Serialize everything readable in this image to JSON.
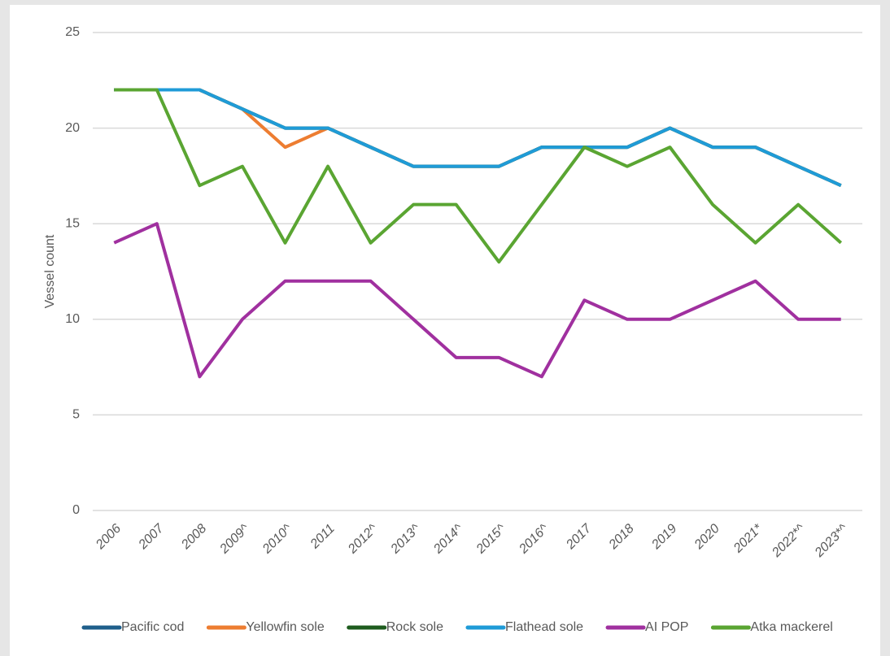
{
  "chart_data": {
    "type": "line",
    "y_label": "Vessel count",
    "categories": [
      "2006",
      "2007",
      "2008",
      "2009^",
      "2010^",
      "2011",
      "2012^",
      "2013^",
      "2014^",
      "2015^",
      "2016^",
      "2017",
      "2018",
      "2019",
      "2020",
      "2021*",
      "2022*^",
      "2023*^"
    ],
    "series": [
      {
        "name": "Pacific cod",
        "color": "#1f5f8b",
        "values": [
          22,
          22,
          22,
          21,
          20,
          20,
          19,
          18,
          18,
          18,
          19,
          19,
          19,
          20,
          19,
          19,
          18,
          17
        ]
      },
      {
        "name": "Yellowfin sole",
        "color": "#ed7d31",
        "values": [
          22,
          22,
          22,
          21,
          19,
          20,
          19,
          18,
          18,
          18,
          19,
          19,
          19,
          20,
          19,
          19,
          18,
          17
        ]
      },
      {
        "name": "Rock sole",
        "color": "#1e5c1e",
        "values": [
          22,
          22,
          22,
          21,
          20,
          20,
          19,
          18,
          18,
          18,
          19,
          19,
          19,
          20,
          19,
          19,
          18,
          17
        ]
      },
      {
        "name": "Flathead sole",
        "color": "#1f9bd7",
        "values": [
          22,
          22,
          22,
          21,
          20,
          20,
          19,
          18,
          18,
          18,
          19,
          19,
          19,
          20,
          19,
          19,
          18,
          17
        ]
      },
      {
        "name": "AI POP",
        "color": "#a0309f",
        "values": [
          14,
          15,
          7,
          10,
          12,
          12,
          12,
          10,
          8,
          8,
          7,
          11,
          10,
          10,
          11,
          12,
          10,
          10
        ]
      },
      {
        "name": "Atka mackerel",
        "color": "#5aa532",
        "values": [
          22,
          22,
          17,
          18,
          14,
          18,
          14,
          16,
          16,
          13,
          16,
          19,
          18,
          19,
          16,
          14,
          16,
          14
        ]
      }
    ],
    "ylim": [
      0,
      25
    ],
    "yticks": [
      0,
      5,
      10,
      15,
      20,
      25
    ],
    "grid": true,
    "legend": "bottom"
  }
}
